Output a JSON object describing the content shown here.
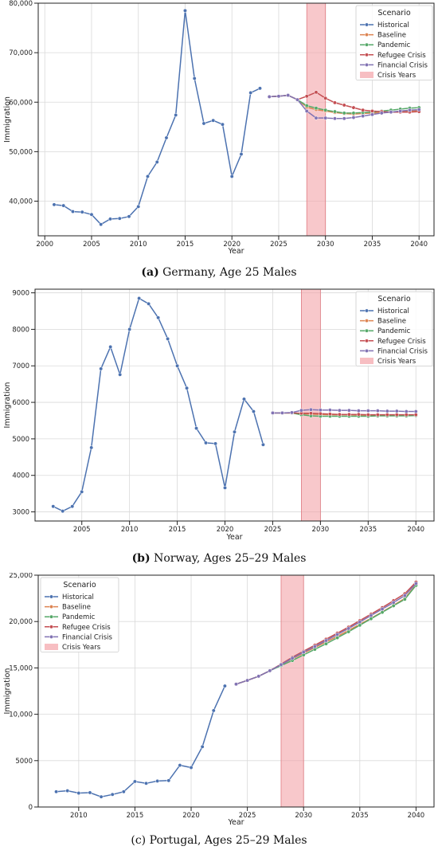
{
  "legend_title": "Scenario",
  "crisis_label": "Crisis Years",
  "scenario_names": [
    "Historical",
    "Baseline",
    "Pandemic",
    "Refugee Crisis",
    "Financial Crisis"
  ],
  "colors": {
    "Historical": "#4C72B0",
    "Baseline": "#DD8452",
    "Pandemic": "#55A868",
    "Refugee Crisis": "#C44E52",
    "Financial Crisis": "#8172B3",
    "crisis": "#F4A3A8"
  },
  "captions": [
    {
      "label": "(a)",
      "text": "Germany, Age 25 Males"
    },
    {
      "label": "(b)",
      "text": "Norway, Ages 25–29 Males"
    },
    {
      "label": "(c)",
      "text": "Portugal, Ages 25–29 Males"
    }
  ],
  "chart_data": [
    {
      "type": "line",
      "xlabel": "Year",
      "ylabel": "Immigration",
      "xlim": [
        1999.3,
        2041.6
      ],
      "ylim": [
        33000,
        80000
      ],
      "xticks": [
        2000,
        2005,
        2010,
        2015,
        2020,
        2025,
        2030,
        2035,
        2040
      ],
      "yticks": [
        40000,
        50000,
        60000,
        70000,
        80000
      ],
      "ytick_labels": [
        "40,000",
        "50,000",
        "60,000",
        "70,000",
        "80,000"
      ],
      "crisis_years": [
        2028,
        2030
      ],
      "legend_position": "top-right",
      "series": [
        {
          "name": "Historical",
          "x": [
            2001,
            2002,
            2003,
            2004,
            2005,
            2006,
            2007,
            2008,
            2009,
            2010,
            2011,
            2012,
            2013,
            2014,
            2015,
            2016,
            2017,
            2018,
            2019,
            2020,
            2021,
            2022,
            2023
          ],
          "values": [
            39300,
            39100,
            37900,
            37800,
            37300,
            35300,
            36400,
            36500,
            36900,
            38900,
            45000,
            47900,
            52800,
            57400,
            78500,
            64800,
            55700,
            56300,
            55500,
            45000,
            49500,
            61900,
            62800
          ]
        },
        {
          "name": "Baseline",
          "x": [
            2024,
            2025,
            2026,
            2027,
            2028,
            2029,
            2030,
            2031,
            2032,
            2033,
            2034,
            2035,
            2036,
            2037,
            2038,
            2039,
            2040
          ],
          "values": [
            61100,
            61200,
            61400,
            60500,
            59000,
            58500,
            58200,
            57900,
            57700,
            57600,
            57700,
            57800,
            57900,
            58000,
            58100,
            58200,
            58300
          ]
        },
        {
          "name": "Pandemic",
          "x": [
            2024,
            2025,
            2026,
            2027,
            2028,
            2029,
            2030,
            2031,
            2032,
            2033,
            2034,
            2035,
            2036,
            2037,
            2038,
            2039,
            2040
          ],
          "values": [
            61100,
            61200,
            61400,
            60500,
            59300,
            58800,
            58400,
            58100,
            57800,
            57800,
            57900,
            58000,
            58200,
            58400,
            58600,
            58800,
            58900
          ]
        },
        {
          "name": "Refugee Crisis",
          "x": [
            2024,
            2025,
            2026,
            2027,
            2028,
            2029,
            2030,
            2031,
            2032,
            2033,
            2034,
            2035,
            2036,
            2037,
            2038,
            2039,
            2040
          ],
          "values": [
            61100,
            61200,
            61400,
            60500,
            61200,
            62000,
            60800,
            59900,
            59400,
            58900,
            58400,
            58200,
            58100,
            58000,
            58000,
            58000,
            58100
          ]
        },
        {
          "name": "Financial Crisis",
          "x": [
            2024,
            2025,
            2026,
            2027,
            2028,
            2029,
            2030,
            2031,
            2032,
            2033,
            2034,
            2035,
            2036,
            2037,
            2038,
            2039,
            2040
          ],
          "values": [
            61100,
            61200,
            61400,
            60500,
            58200,
            56800,
            56800,
            56700,
            56700,
            56900,
            57200,
            57500,
            57800,
            58000,
            58200,
            58400,
            58500
          ]
        }
      ]
    },
    {
      "type": "line",
      "xlabel": "Year",
      "ylabel": "Immigration",
      "xlim": [
        2000.1,
        2041.9
      ],
      "ylim": [
        2750,
        9100
      ],
      "xticks": [
        2005,
        2010,
        2015,
        2020,
        2025,
        2030,
        2035,
        2040
      ],
      "yticks": [
        3000,
        4000,
        5000,
        6000,
        7000,
        8000,
        9000
      ],
      "ytick_labels": [
        "3000",
        "4000",
        "5000",
        "6000",
        "7000",
        "8000",
        "9000"
      ],
      "crisis_years": [
        2028,
        2030
      ],
      "legend_position": "top-right",
      "series": [
        {
          "name": "Historical",
          "x": [
            2002,
            2003,
            2004,
            2005,
            2006,
            2007,
            2008,
            2009,
            2010,
            2011,
            2012,
            2013,
            2014,
            2015,
            2016,
            2017,
            2018,
            2019,
            2020,
            2021,
            2022,
            2023,
            2024
          ],
          "values": [
            3150,
            3020,
            3150,
            3550,
            4760,
            6920,
            7520,
            6760,
            8000,
            8850,
            8700,
            8320,
            7740,
            7000,
            6390,
            5290,
            4890,
            4870,
            3660,
            5190,
            6090,
            5750,
            4840
          ]
        },
        {
          "name": "Baseline",
          "x": [
            2025,
            2026,
            2027,
            2028,
            2029,
            2030,
            2031,
            2032,
            2033,
            2034,
            2035,
            2036,
            2037,
            2038,
            2039,
            2040
          ],
          "values": [
            5710,
            5710,
            5710,
            5690,
            5680,
            5670,
            5660,
            5660,
            5660,
            5650,
            5650,
            5650,
            5650,
            5650,
            5650,
            5650
          ]
        },
        {
          "name": "Pandemic",
          "x": [
            2025,
            2026,
            2027,
            2028,
            2029,
            2030,
            2031,
            2032,
            2033,
            2034,
            2035,
            2036,
            2037,
            2038,
            2039,
            2040
          ],
          "values": [
            5710,
            5710,
            5710,
            5660,
            5630,
            5620,
            5620,
            5620,
            5620,
            5620,
            5620,
            5630,
            5630,
            5630,
            5630,
            5640
          ]
        },
        {
          "name": "Refugee Crisis",
          "x": [
            2025,
            2026,
            2027,
            2028,
            2029,
            2030,
            2031,
            2032,
            2033,
            2034,
            2035,
            2036,
            2037,
            2038,
            2039,
            2040
          ],
          "values": [
            5710,
            5710,
            5710,
            5700,
            5700,
            5690,
            5680,
            5670,
            5670,
            5670,
            5660,
            5660,
            5660,
            5660,
            5660,
            5660
          ]
        },
        {
          "name": "Financial Crisis",
          "x": [
            2025,
            2026,
            2027,
            2028,
            2029,
            2030,
            2031,
            2032,
            2033,
            2034,
            2035,
            2036,
            2037,
            2038,
            2039,
            2040
          ],
          "values": [
            5710,
            5710,
            5720,
            5780,
            5800,
            5790,
            5790,
            5780,
            5780,
            5770,
            5770,
            5770,
            5760,
            5760,
            5750,
            5750
          ]
        }
      ]
    },
    {
      "type": "line",
      "xlabel": "Year",
      "ylabel": "Immigration",
      "xlim": [
        2006.4,
        2041.6
      ],
      "ylim": [
        0,
        25000
      ],
      "xticks": [
        2010,
        2015,
        2020,
        2025,
        2030,
        2035,
        2040
      ],
      "yticks": [
        0,
        5000,
        10000,
        15000,
        20000,
        25000
      ],
      "ytick_labels": [
        "0",
        "5000",
        "10,000",
        "15,000",
        "20,000",
        "25,000"
      ],
      "crisis_years": [
        2028,
        2030
      ],
      "legend_position": "top-left",
      "series": [
        {
          "name": "Historical",
          "x": [
            2008,
            2009,
            2010,
            2011,
            2012,
            2013,
            2014,
            2015,
            2016,
            2017,
            2018,
            2019,
            2020,
            2021,
            2022,
            2023
          ],
          "values": [
            1650,
            1750,
            1500,
            1550,
            1100,
            1350,
            1650,
            2750,
            2550,
            2800,
            2850,
            4500,
            4250,
            6500,
            10400,
            13050
          ]
        },
        {
          "name": "Baseline",
          "x": [
            2024,
            2025,
            2026,
            2027,
            2028,
            2029,
            2030,
            2031,
            2032,
            2033,
            2034,
            2035,
            2036,
            2037,
            2038,
            2039,
            2040
          ],
          "values": [
            13250,
            13650,
            14100,
            14700,
            15350,
            16000,
            16600,
            17200,
            17800,
            18400,
            19050,
            19700,
            20350,
            21050,
            21750,
            22500,
            23950
          ]
        },
        {
          "name": "Pandemic",
          "x": [
            2024,
            2025,
            2026,
            2027,
            2028,
            2029,
            2030,
            2031,
            2032,
            2033,
            2034,
            2035,
            2036,
            2037,
            2038,
            2039,
            2040
          ],
          "values": [
            13250,
            13650,
            14100,
            14700,
            15250,
            15800,
            16400,
            17000,
            17600,
            18250,
            18900,
            19600,
            20300,
            21000,
            21700,
            22400,
            23900
          ]
        },
        {
          "name": "Refugee Crisis",
          "x": [
            2024,
            2025,
            2026,
            2027,
            2028,
            2029,
            2030,
            2031,
            2032,
            2033,
            2034,
            2035,
            2036,
            2037,
            2038,
            2039,
            2040
          ],
          "values": [
            13250,
            13650,
            14100,
            14700,
            15400,
            16150,
            16800,
            17450,
            18100,
            18750,
            19400,
            20100,
            20800,
            21500,
            22250,
            23000,
            24250
          ]
        },
        {
          "name": "Financial Crisis",
          "x": [
            2024,
            2025,
            2026,
            2027,
            2028,
            2029,
            2030,
            2031,
            2032,
            2033,
            2034,
            2035,
            2036,
            2037,
            2038,
            2039,
            2040
          ],
          "values": [
            13250,
            13650,
            14100,
            14700,
            15350,
            16050,
            16700,
            17300,
            17950,
            18600,
            19250,
            19950,
            20650,
            21350,
            22050,
            22800,
            24100
          ]
        }
      ]
    }
  ]
}
